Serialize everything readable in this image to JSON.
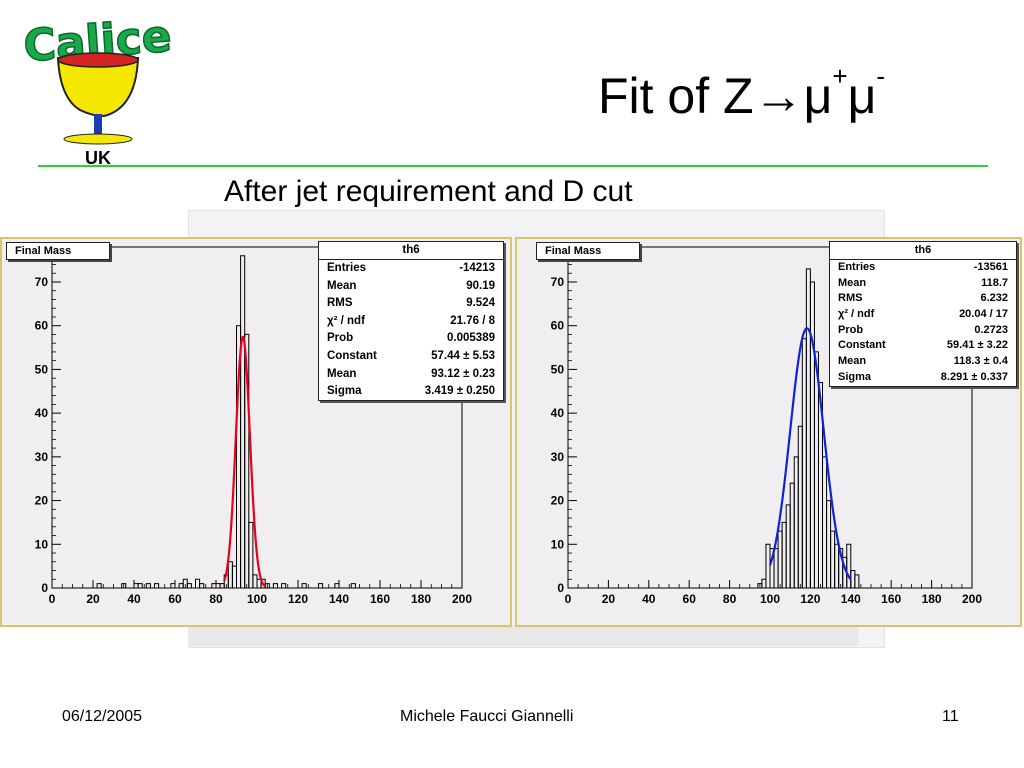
{
  "logo": {
    "text": "Calice",
    "country": "UK",
    "colors": {
      "text": "#1aa84a",
      "cup": "#f4e800",
      "cup_rim": "#d32424",
      "stem": "#1c3cb4"
    }
  },
  "title": {
    "prefix": "Fit of Z",
    "arrow": "→",
    "mu": "μ",
    "plus": "+",
    "minus": "-"
  },
  "subtitle": "After jet requirement and D cut",
  "footer": {
    "date": "06/12/2005",
    "author": "Michele Faucci Giannelli",
    "page": "11"
  },
  "chart_data": [
    {
      "type": "bar",
      "title": "Final Mass",
      "xlim": [
        0,
        200
      ],
      "ylim": [
        0,
        78
      ],
      "xticks": [
        0,
        20,
        40,
        60,
        80,
        100,
        120,
        140,
        160,
        180,
        200
      ],
      "yticks": [
        0,
        10,
        20,
        30,
        40,
        50,
        60,
        70
      ],
      "bin_width": 2,
      "bins": [
        [
          22,
          1
        ],
        [
          34,
          1
        ],
        [
          40,
          1
        ],
        [
          42,
          1
        ],
        [
          46,
          1
        ],
        [
          50,
          1
        ],
        [
          58,
          1
        ],
        [
          62,
          1
        ],
        [
          64,
          2
        ],
        [
          66,
          1
        ],
        [
          70,
          2
        ],
        [
          72,
          1
        ],
        [
          78,
          1
        ],
        [
          80,
          1
        ],
        [
          82,
          1
        ],
        [
          84,
          3
        ],
        [
          86,
          6
        ],
        [
          88,
          5
        ],
        [
          90,
          60
        ],
        [
          92,
          76
        ],
        [
          94,
          58
        ],
        [
          96,
          15
        ],
        [
          98,
          3
        ],
        [
          100,
          2
        ],
        [
          102,
          2
        ],
        [
          104,
          1
        ],
        [
          108,
          1
        ],
        [
          112,
          1
        ],
        [
          122,
          1
        ],
        [
          130,
          1
        ],
        [
          138,
          1
        ],
        [
          146,
          1
        ]
      ],
      "fit": {
        "constant": 57.44,
        "mean": 93.12,
        "sigma": 3.419,
        "range": [
          84,
          104
        ],
        "color": "#e8001e"
      },
      "stats": {
        "name": "th6",
        "rows": [
          {
            "label": "Entries",
            "value": "-14213"
          },
          {
            "label": "Mean",
            "value": "90.19"
          },
          {
            "label": "RMS",
            "value": "9.524"
          },
          {
            "label": "χ² / ndf",
            "value": "21.76 / 8"
          },
          {
            "label": "Prob",
            "value": "0.005389"
          },
          {
            "label": "Constant",
            "value": "57.44 ± 5.53"
          },
          {
            "label": "Mean",
            "value": "93.12 ± 0.23"
          },
          {
            "label": "Sigma",
            "value": "3.419 ± 0.250"
          }
        ]
      }
    },
    {
      "type": "bar",
      "title": "Final Mass",
      "xlim": [
        0,
        200
      ],
      "ylim": [
        0,
        78
      ],
      "xticks": [
        0,
        20,
        40,
        60,
        80,
        100,
        120,
        140,
        160,
        180,
        200
      ],
      "yticks": [
        0,
        10,
        20,
        30,
        40,
        50,
        60,
        70
      ],
      "bin_width": 2,
      "bins": [
        [
          94,
          1
        ],
        [
          96,
          2
        ],
        [
          98,
          10
        ],
        [
          100,
          9
        ],
        [
          102,
          9
        ],
        [
          104,
          13
        ],
        [
          106,
          15
        ],
        [
          108,
          19
        ],
        [
          110,
          24
        ],
        [
          112,
          30
        ],
        [
          114,
          37
        ],
        [
          116,
          57
        ],
        [
          118,
          73
        ],
        [
          120,
          70
        ],
        [
          122,
          54
        ],
        [
          124,
          47
        ],
        [
          126,
          30
        ],
        [
          128,
          20
        ],
        [
          130,
          13
        ],
        [
          132,
          10
        ],
        [
          134,
          9
        ],
        [
          136,
          7
        ],
        [
          138,
          10
        ],
        [
          140,
          4
        ],
        [
          142,
          3
        ]
      ],
      "fit": {
        "constant": 59.41,
        "mean": 118.3,
        "sigma": 8.291,
        "range": [
          100,
          140
        ],
        "color": "#1022d6"
      },
      "stats": {
        "name": "th6",
        "rows": [
          {
            "label": "Entries",
            "value": "-13561"
          },
          {
            "label": "Mean",
            "value": "118.7"
          },
          {
            "label": "RMS",
            "value": "6.232"
          },
          {
            "label": "χ² / ndf",
            "value": "20.04 / 17"
          },
          {
            "label": "Prob",
            "value": "0.2723"
          },
          {
            "label": "Constant",
            "value": "59.41 ± 3.22"
          },
          {
            "label": "Mean",
            "value": "118.3 ± 0.4"
          },
          {
            "label": "Sigma",
            "value": "8.291 ± 0.337"
          }
        ]
      }
    }
  ]
}
